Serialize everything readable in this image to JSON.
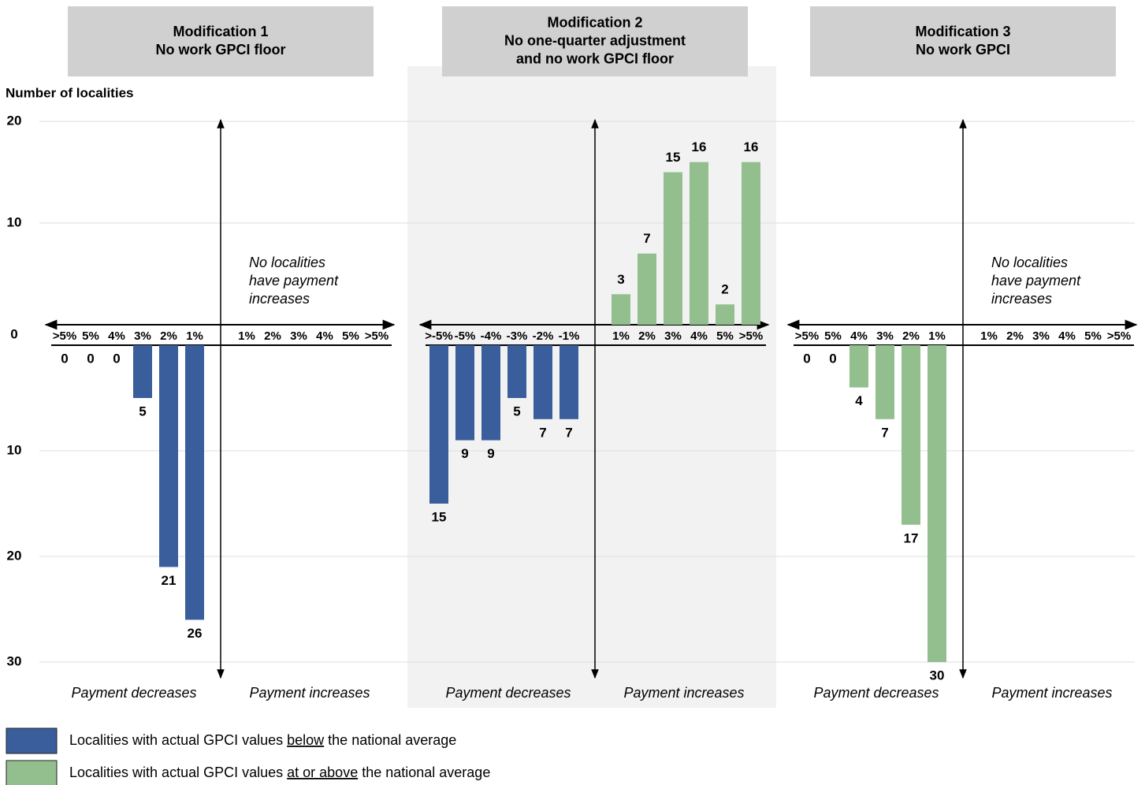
{
  "chart_data": {
    "type": "bar",
    "y_label": "Number of localities",
    "ylim_up": [
      0,
      20
    ],
    "yticks_up": [
      0,
      10,
      20
    ],
    "ylim_down": [
      0,
      30
    ],
    "yticks_down": [
      10,
      20,
      30
    ],
    "grid": true,
    "series": [
      {
        "name_parts": [
          "Localities with actual GPCI values ",
          "below",
          " the national average"
        ],
        "underline": 1,
        "color": "#3a5e9c"
      },
      {
        "name_parts": [
          "Localities with actual GPCI values ",
          "at or above",
          " the national average"
        ],
        "underline": 1,
        "color": "#93bf8f"
      }
    ],
    "panels": [
      {
        "title": [
          "Modification 1",
          "No work GPCI floor"
        ],
        "highlight": false,
        "decrease_label": "Payment decreases",
        "increase_label": "Payment increases",
        "decreases": {
          "series": 0,
          "categories": [
            ">5%",
            "5%",
            "4%",
            "3%",
            "2%",
            "1%"
          ],
          "values": [
            0,
            0,
            0,
            5,
            21,
            26
          ]
        },
        "increases": {
          "categories": [
            "1%",
            "2%",
            "3%",
            "4%",
            "5%",
            ">5%"
          ],
          "annotation": [
            "No localities",
            "have payment",
            "increases"
          ]
        }
      },
      {
        "title": [
          "Modification 2",
          "No one-quarter adjustment",
          "and no work GPCI floor"
        ],
        "highlight": true,
        "decrease_label": "Payment decreases",
        "increase_label": "Payment increases",
        "decreases": {
          "series": 0,
          "categories": [
            ">-5%",
            "-5%",
            "-4%",
            "-3%",
            "-2%",
            "-1%"
          ],
          "values": [
            15,
            9,
            9,
            5,
            7,
            7
          ]
        },
        "increases": {
          "series": 1,
          "categories": [
            "1%",
            "2%",
            "3%",
            "4%",
            "5%",
            ">5%"
          ],
          "values": [
            3,
            7,
            15,
            16,
            2,
            16
          ]
        }
      },
      {
        "title": [
          "Modification 3",
          "No work GPCI"
        ],
        "highlight": false,
        "decrease_label": "Payment decreases",
        "increase_label": "Payment increases",
        "decreases": {
          "series": 1,
          "categories": [
            ">5%",
            "5%",
            "4%",
            "3%",
            "2%",
            "1%"
          ],
          "values": [
            0,
            0,
            4,
            7,
            17,
            30
          ]
        },
        "increases": {
          "categories": [
            "1%",
            "2%",
            "3%",
            "4%",
            "5%",
            ">5%"
          ],
          "annotation": [
            "No localities",
            "have payment",
            "increases"
          ]
        }
      }
    ]
  }
}
